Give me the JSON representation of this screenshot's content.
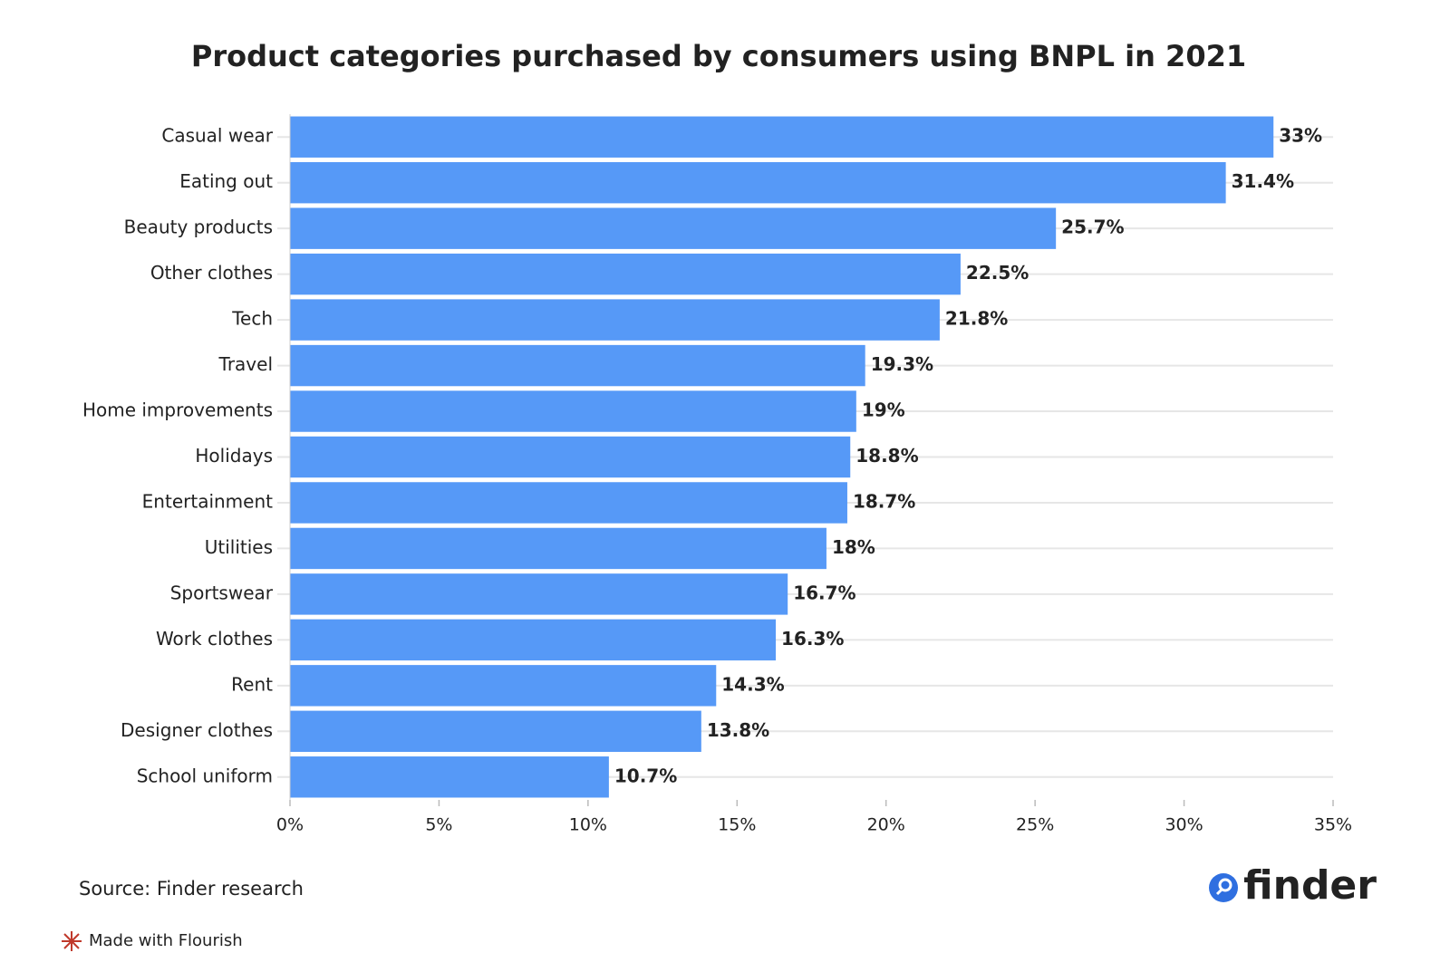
{
  "chart_data": {
    "type": "bar",
    "orientation": "horizontal",
    "title": "Product categories purchased by consumers using BNPL in 2021",
    "categories": [
      "Casual wear",
      "Eating out",
      "Beauty products",
      "Other clothes",
      "Tech",
      "Travel",
      "Home improvements",
      "Holidays",
      "Entertainment",
      "Utilities",
      "Sportswear",
      "Work clothes",
      "Rent",
      "Designer clothes",
      "School uniform"
    ],
    "values": [
      33,
      31.4,
      25.7,
      22.5,
      21.8,
      19.3,
      19,
      18.8,
      18.7,
      18,
      16.7,
      16.3,
      14.3,
      13.8,
      10.7
    ],
    "value_labels": [
      "33%",
      "31.4%",
      "25.7%",
      "22.5%",
      "21.8%",
      "19.3%",
      "19%",
      "18.8%",
      "18.7%",
      "18%",
      "16.7%",
      "16.3%",
      "14.3%",
      "13.8%",
      "10.7%"
    ],
    "color": "#5699f7",
    "xlim": [
      0,
      35
    ],
    "xticks": [
      {
        "value": 0,
        "label": "0%"
      },
      {
        "value": 5,
        "label": "5%"
      },
      {
        "value": 10,
        "label": "10%"
      },
      {
        "value": 15,
        "label": "15%"
      },
      {
        "value": 20,
        "label": "20%"
      },
      {
        "value": 25,
        "label": "25%"
      },
      {
        "value": 30,
        "label": "30%"
      },
      {
        "value": 35,
        "label": "35%"
      }
    ],
    "grid": true,
    "source": "Source: Finder research",
    "brand": "finder",
    "credit": "Made with Flourish"
  }
}
